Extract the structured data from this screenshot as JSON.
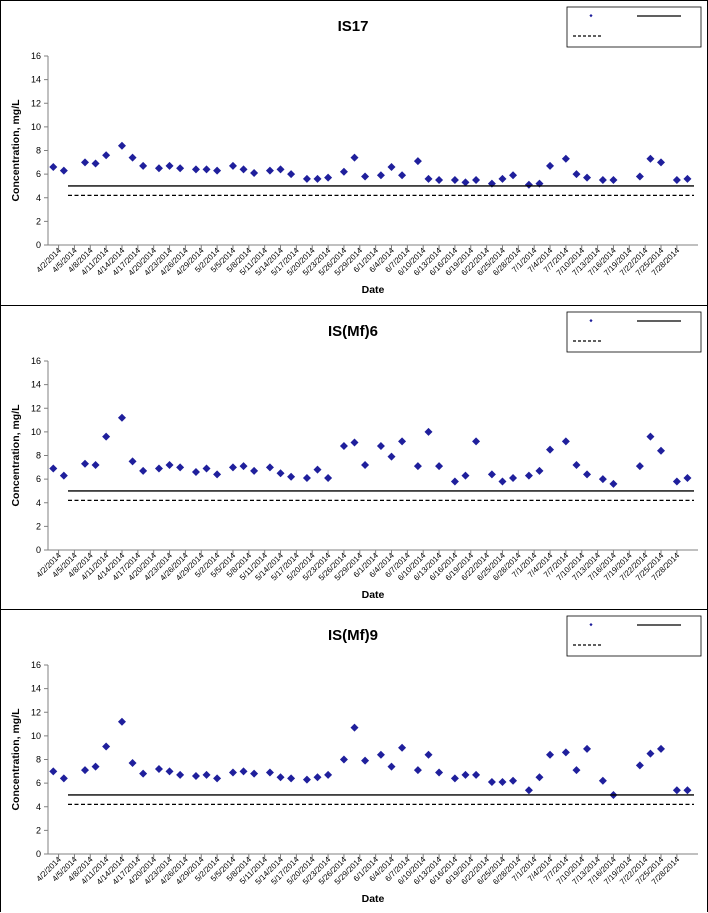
{
  "chart_data": [
    {
      "type": "scatter",
      "title": "IS17",
      "xlabel": "Date",
      "ylabel": "Concentration, mg/L",
      "ylim": [
        0,
        16
      ],
      "yticks": [
        "0",
        "2",
        "4",
        "6",
        "8",
        "10",
        "12",
        "14",
        "16"
      ],
      "grid": false,
      "legend_position": "top-right",
      "xticks": [
        "4/2/2014",
        "4/5/2014",
        "4/8/2014",
        "4/11/2014",
        "4/14/2014",
        "4/17/2014",
        "4/20/2014",
        "4/23/2014",
        "4/26/2014",
        "4/29/2014",
        "5/2/2014",
        "5/5/2014",
        "5/8/2014",
        "5/11/2014",
        "5/14/2014",
        "5/17/2014",
        "5/20/2014",
        "5/23/2014",
        "5/26/2014",
        "5/29/2014",
        "6/1/2014",
        "6/4/2014",
        "6/7/2014",
        "6/10/2014",
        "6/13/2014",
        "6/16/2014",
        "6/19/2014",
        "6/22/2014",
        "6/25/2014",
        "6/28/2014",
        "7/1/2014",
        "7/4/2014",
        "7/7/2014",
        "7/10/2014",
        "7/13/2014",
        "7/16/2014",
        "7/19/2014",
        "7/22/2014",
        "7/25/2014",
        "7/28/2014"
      ],
      "series": [
        {
          "kind": "points",
          "color": "#1f1f9c",
          "marker": "diamond",
          "points": [
            {
              "x": "2014-04-01",
              "y": 6.6
            },
            {
              "x": "2014-04-03",
              "y": 6.3
            },
            {
              "x": "2014-04-07",
              "y": 7.0
            },
            {
              "x": "2014-04-09",
              "y": 6.9
            },
            {
              "x": "2014-04-11",
              "y": 7.6
            },
            {
              "x": "2014-04-14",
              "y": 8.4
            },
            {
              "x": "2014-04-16",
              "y": 7.4
            },
            {
              "x": "2014-04-18",
              "y": 6.7
            },
            {
              "x": "2014-04-21",
              "y": 6.5
            },
            {
              "x": "2014-04-23",
              "y": 6.7
            },
            {
              "x": "2014-04-25",
              "y": 6.5
            },
            {
              "x": "2014-04-28",
              "y": 6.4
            },
            {
              "x": "2014-04-30",
              "y": 6.4
            },
            {
              "x": "2014-05-02",
              "y": 6.3
            },
            {
              "x": "2014-05-05",
              "y": 6.7
            },
            {
              "x": "2014-05-07",
              "y": 6.4
            },
            {
              "x": "2014-05-09",
              "y": 6.1
            },
            {
              "x": "2014-05-12",
              "y": 6.3
            },
            {
              "x": "2014-05-14",
              "y": 6.4
            },
            {
              "x": "2014-05-16",
              "y": 6.0
            },
            {
              "x": "2014-05-19",
              "y": 5.6
            },
            {
              "x": "2014-05-21",
              "y": 5.6
            },
            {
              "x": "2014-05-23",
              "y": 5.7
            },
            {
              "x": "2014-05-26",
              "y": 6.2
            },
            {
              "x": "2014-05-28",
              "y": 7.4
            },
            {
              "x": "2014-05-30",
              "y": 5.8
            },
            {
              "x": "2014-06-02",
              "y": 5.9
            },
            {
              "x": "2014-06-04",
              "y": 6.6
            },
            {
              "x": "2014-06-06",
              "y": 5.9
            },
            {
              "x": "2014-06-09",
              "y": 7.1
            },
            {
              "x": "2014-06-11",
              "y": 5.6
            },
            {
              "x": "2014-06-13",
              "y": 5.5
            },
            {
              "x": "2014-06-16",
              "y": 5.5
            },
            {
              "x": "2014-06-18",
              "y": 5.3
            },
            {
              "x": "2014-06-20",
              "y": 5.5
            },
            {
              "x": "2014-06-23",
              "y": 5.2
            },
            {
              "x": "2014-06-25",
              "y": 5.6
            },
            {
              "x": "2014-06-27",
              "y": 5.9
            },
            {
              "x": "2014-06-30",
              "y": 5.1
            },
            {
              "x": "2014-07-02",
              "y": 5.2
            },
            {
              "x": "2014-07-04",
              "y": 6.7
            },
            {
              "x": "2014-07-07",
              "y": 7.3
            },
            {
              "x": "2014-07-09",
              "y": 6.0
            },
            {
              "x": "2014-07-11",
              "y": 5.7
            },
            {
              "x": "2014-07-14",
              "y": 5.5
            },
            {
              "x": "2014-07-16",
              "y": 5.5
            },
            {
              "x": "2014-07-21",
              "y": 5.8
            },
            {
              "x": "2014-07-23",
              "y": 7.3
            },
            {
              "x": "2014-07-25",
              "y": 7.0
            },
            {
              "x": "2014-07-28",
              "y": 5.5
            },
            {
              "x": "2014-07-30",
              "y": 5.6
            }
          ]
        },
        {
          "kind": "hline",
          "y": 5.0,
          "style": "solid",
          "color": "#000000"
        },
        {
          "kind": "hline",
          "y": 4.2,
          "style": "dashed",
          "color": "#000000"
        }
      ]
    },
    {
      "type": "scatter",
      "title": "IS(Mf)6",
      "xlabel": "Date",
      "ylabel": "Concentration, mg/L",
      "ylim": [
        0,
        16
      ],
      "yticks": [
        "0",
        "2",
        "4",
        "6",
        "8",
        "10",
        "12",
        "14",
        "16"
      ],
      "grid": false,
      "legend_position": "top-right",
      "xticks": [
        "4/2/2014",
        "4/5/2014",
        "4/8/2014",
        "4/11/2014",
        "4/14/2014",
        "4/17/2014",
        "4/20/2014",
        "4/23/2014",
        "4/26/2014",
        "4/29/2014",
        "5/2/2014",
        "5/5/2014",
        "5/8/2014",
        "5/11/2014",
        "5/14/2014",
        "5/17/2014",
        "5/20/2014",
        "5/23/2014",
        "5/26/2014",
        "5/29/2014",
        "6/1/2014",
        "6/4/2014",
        "6/7/2014",
        "6/10/2014",
        "6/13/2014",
        "6/16/2014",
        "6/19/2014",
        "6/22/2014",
        "6/25/2014",
        "6/28/2014",
        "7/1/2014",
        "7/4/2014",
        "7/7/2014",
        "7/10/2014",
        "7/13/2014",
        "7/16/2014",
        "7/19/2014",
        "7/22/2014",
        "7/25/2014",
        "7/28/2014"
      ],
      "series": [
        {
          "kind": "points",
          "color": "#1f1f9c",
          "marker": "diamond",
          "points": [
            {
              "x": "2014-04-01",
              "y": 6.9
            },
            {
              "x": "2014-04-03",
              "y": 6.3
            },
            {
              "x": "2014-04-07",
              "y": 7.3
            },
            {
              "x": "2014-04-09",
              "y": 7.2
            },
            {
              "x": "2014-04-11",
              "y": 9.6
            },
            {
              "x": "2014-04-14",
              "y": 11.2
            },
            {
              "x": "2014-04-16",
              "y": 7.5
            },
            {
              "x": "2014-04-18",
              "y": 6.7
            },
            {
              "x": "2014-04-21",
              "y": 6.9
            },
            {
              "x": "2014-04-23",
              "y": 7.2
            },
            {
              "x": "2014-04-25",
              "y": 7.0
            },
            {
              "x": "2014-04-28",
              "y": 6.6
            },
            {
              "x": "2014-04-30",
              "y": 6.9
            },
            {
              "x": "2014-05-02",
              "y": 6.4
            },
            {
              "x": "2014-05-05",
              "y": 7.0
            },
            {
              "x": "2014-05-07",
              "y": 7.1
            },
            {
              "x": "2014-05-09",
              "y": 6.7
            },
            {
              "x": "2014-05-12",
              "y": 7.0
            },
            {
              "x": "2014-05-14",
              "y": 6.5
            },
            {
              "x": "2014-05-16",
              "y": 6.2
            },
            {
              "x": "2014-05-19",
              "y": 6.1
            },
            {
              "x": "2014-05-21",
              "y": 6.8
            },
            {
              "x": "2014-05-23",
              "y": 6.1
            },
            {
              "x": "2014-05-26",
              "y": 8.8
            },
            {
              "x": "2014-05-28",
              "y": 9.1
            },
            {
              "x": "2014-05-30",
              "y": 7.2
            },
            {
              "x": "2014-06-02",
              "y": 8.8
            },
            {
              "x": "2014-06-04",
              "y": 7.9
            },
            {
              "x": "2014-06-06",
              "y": 9.2
            },
            {
              "x": "2014-06-09",
              "y": 7.1
            },
            {
              "x": "2014-06-11",
              "y": 10.0
            },
            {
              "x": "2014-06-13",
              "y": 7.1
            },
            {
              "x": "2014-06-16",
              "y": 5.8
            },
            {
              "x": "2014-06-18",
              "y": 6.3
            },
            {
              "x": "2014-06-20",
              "y": 9.2
            },
            {
              "x": "2014-06-23",
              "y": 6.4
            },
            {
              "x": "2014-06-25",
              "y": 5.8
            },
            {
              "x": "2014-06-27",
              "y": 6.1
            },
            {
              "x": "2014-06-30",
              "y": 6.3
            },
            {
              "x": "2014-07-02",
              "y": 6.7
            },
            {
              "x": "2014-07-04",
              "y": 8.5
            },
            {
              "x": "2014-07-07",
              "y": 9.2
            },
            {
              "x": "2014-07-09",
              "y": 7.2
            },
            {
              "x": "2014-07-11",
              "y": 6.4
            },
            {
              "x": "2014-07-14",
              "y": 6.0
            },
            {
              "x": "2014-07-16",
              "y": 5.6
            },
            {
              "x": "2014-07-21",
              "y": 7.1
            },
            {
              "x": "2014-07-23",
              "y": 9.6
            },
            {
              "x": "2014-07-25",
              "y": 8.4
            },
            {
              "x": "2014-07-28",
              "y": 5.8
            },
            {
              "x": "2014-07-30",
              "y": 6.1
            }
          ]
        },
        {
          "kind": "hline",
          "y": 5.0,
          "style": "solid",
          "color": "#000000"
        },
        {
          "kind": "hline",
          "y": 4.2,
          "style": "dashed",
          "color": "#000000"
        }
      ]
    },
    {
      "type": "scatter",
      "title": "IS(Mf)9",
      "xlabel": "Date",
      "ylabel": "Concentration, mg/L",
      "ylim": [
        0,
        16
      ],
      "yticks": [
        "0",
        "2",
        "4",
        "6",
        "8",
        "10",
        "12",
        "14",
        "16"
      ],
      "grid": false,
      "legend_position": "top-right",
      "xticks": [
        "4/2/2014",
        "4/5/2014",
        "4/8/2014",
        "4/11/2014",
        "4/14/2014",
        "4/17/2014",
        "4/20/2014",
        "4/23/2014",
        "4/26/2014",
        "4/29/2014",
        "5/2/2014",
        "5/5/2014",
        "5/8/2014",
        "5/11/2014",
        "5/14/2014",
        "5/17/2014",
        "5/20/2014",
        "5/23/2014",
        "5/26/2014",
        "5/29/2014",
        "6/1/2014",
        "6/4/2014",
        "6/7/2014",
        "6/10/2014",
        "6/13/2014",
        "6/16/2014",
        "6/19/2014",
        "6/22/2014",
        "6/25/2014",
        "6/28/2014",
        "7/1/2014",
        "7/4/2014",
        "7/7/2014",
        "7/10/2014",
        "7/13/2014",
        "7/16/2014",
        "7/19/2014",
        "7/22/2014",
        "7/25/2014",
        "7/28/2014"
      ],
      "series": [
        {
          "kind": "points",
          "color": "#1f1f9c",
          "marker": "diamond",
          "points": [
            {
              "x": "2014-04-01",
              "y": 7.0
            },
            {
              "x": "2014-04-03",
              "y": 6.4
            },
            {
              "x": "2014-04-07",
              "y": 7.1
            },
            {
              "x": "2014-04-09",
              "y": 7.4
            },
            {
              "x": "2014-04-11",
              "y": 9.1
            },
            {
              "x": "2014-04-14",
              "y": 11.2
            },
            {
              "x": "2014-04-16",
              "y": 7.7
            },
            {
              "x": "2014-04-18",
              "y": 6.8
            },
            {
              "x": "2014-04-21",
              "y": 7.2
            },
            {
              "x": "2014-04-23",
              "y": 7.0
            },
            {
              "x": "2014-04-25",
              "y": 6.7
            },
            {
              "x": "2014-04-28",
              "y": 6.6
            },
            {
              "x": "2014-04-30",
              "y": 6.7
            },
            {
              "x": "2014-05-02",
              "y": 6.4
            },
            {
              "x": "2014-05-05",
              "y": 6.9
            },
            {
              "x": "2014-05-07",
              "y": 7.0
            },
            {
              "x": "2014-05-09",
              "y": 6.8
            },
            {
              "x": "2014-05-12",
              "y": 6.9
            },
            {
              "x": "2014-05-14",
              "y": 6.5
            },
            {
              "x": "2014-05-16",
              "y": 6.4
            },
            {
              "x": "2014-05-19",
              "y": 6.3
            },
            {
              "x": "2014-05-21",
              "y": 6.5
            },
            {
              "x": "2014-05-23",
              "y": 6.7
            },
            {
              "x": "2014-05-26",
              "y": 8.0
            },
            {
              "x": "2014-05-28",
              "y": 10.7
            },
            {
              "x": "2014-05-30",
              "y": 7.9
            },
            {
              "x": "2014-06-02",
              "y": 8.4
            },
            {
              "x": "2014-06-04",
              "y": 7.4
            },
            {
              "x": "2014-06-06",
              "y": 9.0
            },
            {
              "x": "2014-06-09",
              "y": 7.1
            },
            {
              "x": "2014-06-11",
              "y": 8.4
            },
            {
              "x": "2014-06-13",
              "y": 6.9
            },
            {
              "x": "2014-06-16",
              "y": 6.4
            },
            {
              "x": "2014-06-18",
              "y": 6.7
            },
            {
              "x": "2014-06-20",
              "y": 6.7
            },
            {
              "x": "2014-06-23",
              "y": 6.1
            },
            {
              "x": "2014-06-25",
              "y": 6.1
            },
            {
              "x": "2014-06-27",
              "y": 6.2
            },
            {
              "x": "2014-06-30",
              "y": 5.4
            },
            {
              "x": "2014-07-02",
              "y": 6.5
            },
            {
              "x": "2014-07-04",
              "y": 8.4
            },
            {
              "x": "2014-07-07",
              "y": 8.6
            },
            {
              "x": "2014-07-09",
              "y": 7.1
            },
            {
              "x": "2014-07-11",
              "y": 8.9
            },
            {
              "x": "2014-07-14",
              "y": 6.2
            },
            {
              "x": "2014-07-16",
              "y": 5.0
            },
            {
              "x": "2014-07-21",
              "y": 7.5
            },
            {
              "x": "2014-07-23",
              "y": 8.5
            },
            {
              "x": "2014-07-25",
              "y": 8.9
            },
            {
              "x": "2014-07-28",
              "y": 5.4
            },
            {
              "x": "2014-07-30",
              "y": 5.4
            }
          ]
        },
        {
          "kind": "hline",
          "y": 5.0,
          "style": "solid",
          "color": "#000000"
        },
        {
          "kind": "hline",
          "y": 4.2,
          "style": "dashed",
          "color": "#000000"
        }
      ]
    }
  ]
}
